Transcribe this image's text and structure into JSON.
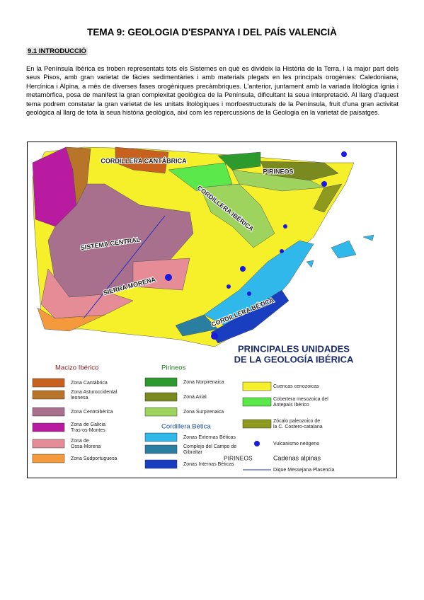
{
  "header": {
    "title": "TEMA 9: GEOLOGIA D'ESPANYA I DEL PAÍS VALENCIÀ",
    "section": "9.1 INTRODUCCIÓ"
  },
  "body": {
    "paragraph": "En la Península Ibèrica es troben representats tots els Sistemes en què es divideix la Història de la Terra, i la major part dels seus Pisos, amb gran varietat de fàcies sedimentàries i amb materials plegats en les principals orogènies: Caledoniana, Hercínica i Alpina, a més de diverses fases orogèniques precàmbriques. L'anterior, juntament amb la variada litològica ígnia i metamòrfica, posa de manifest la gran complexitat geològica de la Península, dificultant la seua interpretació. Al llarg d'aquest tema podrem constatar la gran varietat de les unitats litològiques i morfoestructurals de la Península, fruit d'una gran activitat geològica al llarg de tota la seua història geològica, així com les repercussions de la Geologia en la varietat de paisatges."
  },
  "figure": {
    "title": [
      "PRINCIPALES UNIDADES",
      "DE LA GEOLOGÍA IBÉRICA"
    ],
    "map_labels": [
      "CORDILLERA CANTÁBRICA",
      "PIRINEOS",
      "CORDILLERA IBÉRICA",
      "SISTEMA CENTRAL",
      "SIERRA MORENA",
      "CORDILLERA BÉTICA"
    ],
    "legend_groups": [
      {
        "title": "Macizo Ibérico",
        "items": [
          {
            "label": [
              "Zona Cantábrica"
            ],
            "color": "#c8601e"
          },
          {
            "label": [
              "Zona Asturoccidental",
              "leonesa"
            ],
            "color": "#b8752a"
          },
          {
            "label": [
              "Zona Centroibérica"
            ],
            "color": "#a8708c"
          },
          {
            "label": [
              "Zona de Galicia",
              "Tras-os-Montes"
            ],
            "color": "#b81aa0"
          },
          {
            "label": [
              "Zona de",
              "Ossa-Morena"
            ],
            "color": "#e58c96"
          },
          {
            "label": [
              "Zona Sudportuguesa"
            ],
            "color": "#f59a3c"
          }
        ]
      },
      {
        "title": "Pirineos",
        "items": [
          {
            "label": [
              "Zona Norpirenaica"
            ],
            "color": "#2d9a2d"
          },
          {
            "label": [
              "Zona Axial"
            ],
            "color": "#7a8a1e"
          },
          {
            "label": [
              "Zona Surpirenaica"
            ],
            "color": "#9ed45e"
          }
        ]
      },
      {
        "title": "Cordillera Bética",
        "items": [
          {
            "label": [
              "Zonas Externas Béticas"
            ],
            "color": "#30b8ea"
          },
          {
            "label": [
              "Complejo del Campo de",
              "Gibraltar"
            ],
            "color": "#2a7fa0"
          },
          {
            "label": [
              "Zonas Internas Béticas"
            ],
            "color": "#1a3ec0"
          }
        ]
      }
    ],
    "legend_other": [
      {
        "label": [
          "Cuencas cenozoicas"
        ],
        "color": "#f5f02a"
      },
      {
        "label": [
          "Cobertera mesozoica del",
          "Antepaís Ibérico"
        ],
        "color": "#5ae84a"
      },
      {
        "label": [
          "Zócalo paleozoico de",
          "la C. Costero-catalana"
        ],
        "color": "#8e9a1e"
      }
    ],
    "volcanism": {
      "label": "Vulcanismo neógeno",
      "color": "#1a1ae0"
    },
    "alpine": {
      "sample": "PIRINEOS",
      "label": "Cadenas alpinas"
    },
    "dike": {
      "label": "Dique Messejana Plasencia",
      "color": "#2030c0"
    }
  }
}
